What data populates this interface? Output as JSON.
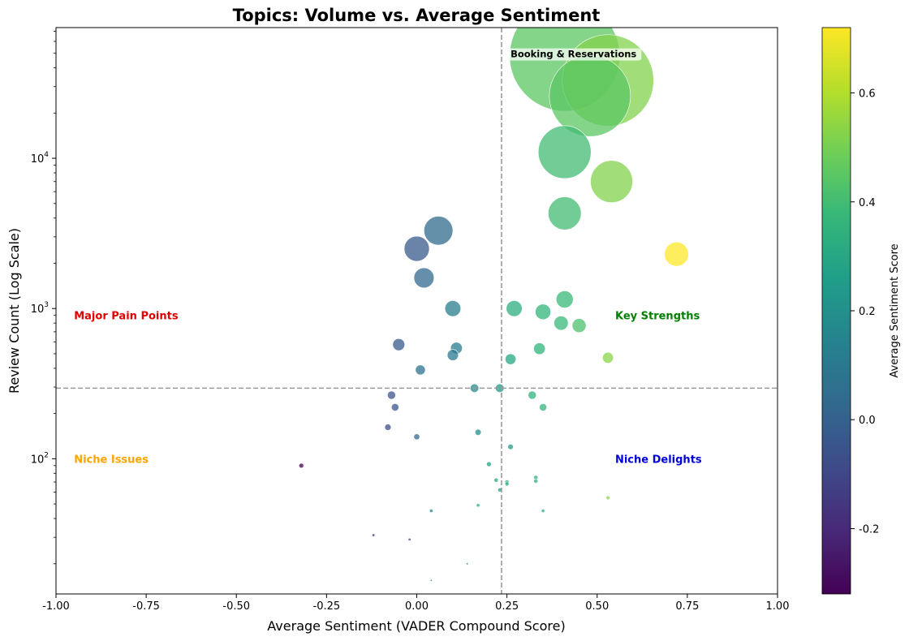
{
  "chart_data": {
    "type": "scatter",
    "title": "Topics: Volume vs. Average Sentiment",
    "xlabel": "Average Sentiment (VADER Compound Score)",
    "ylabel": "Review Count (Log Scale)",
    "xlim": [
      -1.0,
      1.0
    ],
    "ylim_log10": [
      1.1,
      4.87
    ],
    "y_scale": "log",
    "x_ticks": [
      "-1.00",
      "-0.75",
      "-0.50",
      "-0.25",
      "0.00",
      "0.25",
      "0.50",
      "0.75",
      "1.00"
    ],
    "x_tick_values": [
      -1.0,
      -0.75,
      -0.5,
      -0.25,
      0.0,
      0.25,
      0.5,
      0.75,
      1.0
    ],
    "y_ticks": [
      {
        "base": "10",
        "exp": "2",
        "value": 100
      },
      {
        "base": "10",
        "exp": "3",
        "value": 1000
      },
      {
        "base": "10",
        "exp": "4",
        "value": 10000
      }
    ],
    "grid": false,
    "reference_lines": {
      "x": 0.235,
      "y": 295
    },
    "colorbar": {
      "label": "Average Sentiment Score",
      "range": [
        -0.32,
        0.72
      ],
      "ticks": [
        "-0.2",
        "0.0",
        "0.2",
        "0.4",
        "0.6"
      ],
      "tick_values": [
        -0.2,
        0.0,
        0.2,
        0.4,
        0.6
      ]
    },
    "annotations": [
      {
        "text": "Major Pain Points",
        "x": -0.95,
        "y": 900,
        "color": "#e00000"
      },
      {
        "text": "Key Strengths",
        "x": 0.55,
        "y": 900,
        "color": "#008000"
      },
      {
        "text": "Niche Issues",
        "x": -0.95,
        "y": 100,
        "color": "#ffa500"
      },
      {
        "text": "Niche Delights",
        "x": 0.55,
        "y": 100,
        "color": "#0000dd"
      },
      {
        "text": "Booking & Reservations",
        "x": 0.26,
        "y": 50000,
        "color": "#000000"
      }
    ],
    "points": [
      {
        "x": 0.41,
        "y": 48000,
        "s": 0.45
      },
      {
        "x": 0.53,
        "y": 33000,
        "s": 0.52
      },
      {
        "x": 0.48,
        "y": 26000,
        "s": 0.45
      },
      {
        "x": 0.41,
        "y": 11000,
        "s": 0.4
      },
      {
        "x": 0.54,
        "y": 7000,
        "s": 0.52
      },
      {
        "x": 0.41,
        "y": 4300,
        "s": 0.4
      },
      {
        "x": 0.06,
        "y": 3300,
        "s": 0.04
      },
      {
        "x": 0.0,
        "y": 2500,
        "s": -0.03
      },
      {
        "x": 0.72,
        "y": 2300,
        "s": 0.72
      },
      {
        "x": 0.02,
        "y": 1600,
        "s": 0.03
      },
      {
        "x": 0.41,
        "y": 1150,
        "s": 0.38
      },
      {
        "x": 0.27,
        "y": 1000,
        "s": 0.33
      },
      {
        "x": 0.1,
        "y": 1000,
        "s": 0.12
      },
      {
        "x": 0.35,
        "y": 950,
        "s": 0.36
      },
      {
        "x": 0.4,
        "y": 800,
        "s": 0.38
      },
      {
        "x": 0.45,
        "y": 770,
        "s": 0.42
      },
      {
        "x": -0.05,
        "y": 575,
        "s": -0.03
      },
      {
        "x": 0.11,
        "y": 545,
        "s": 0.12
      },
      {
        "x": 0.34,
        "y": 540,
        "s": 0.36
      },
      {
        "x": 0.1,
        "y": 490,
        "s": 0.1
      },
      {
        "x": 0.53,
        "y": 470,
        "s": 0.53
      },
      {
        "x": 0.26,
        "y": 460,
        "s": 0.3
      },
      {
        "x": 0.01,
        "y": 390,
        "s": 0.06
      },
      {
        "x": 0.16,
        "y": 295,
        "s": 0.17
      },
      {
        "x": 0.23,
        "y": 295,
        "s": 0.24
      },
      {
        "x": -0.07,
        "y": 265,
        "s": -0.05
      },
      {
        "x": 0.32,
        "y": 265,
        "s": 0.35
      },
      {
        "x": -0.06,
        "y": 220,
        "s": -0.05
      },
      {
        "x": 0.35,
        "y": 220,
        "s": 0.37
      },
      {
        "x": -0.08,
        "y": 162,
        "s": -0.08
      },
      {
        "x": 0.17,
        "y": 150,
        "s": 0.2
      },
      {
        "x": 0.0,
        "y": 140,
        "s": 0.03
      },
      {
        "x": 0.26,
        "y": 120,
        "s": 0.26
      },
      {
        "x": 0.2,
        "y": 92,
        "s": 0.27
      },
      {
        "x": -0.32,
        "y": 90,
        "s": -0.32
      },
      {
        "x": 0.33,
        "y": 75,
        "s": 0.35
      },
      {
        "x": 0.22,
        "y": 72,
        "s": 0.3
      },
      {
        "x": 0.33,
        "y": 71,
        "s": 0.35
      },
      {
        "x": 0.25,
        "y": 70,
        "s": 0.3
      },
      {
        "x": 0.25,
        "y": 68,
        "s": 0.33
      },
      {
        "x": 0.23,
        "y": 62,
        "s": 0.27
      },
      {
        "x": 0.53,
        "y": 55,
        "s": 0.53
      },
      {
        "x": 0.17,
        "y": 49,
        "s": 0.35
      },
      {
        "x": 0.04,
        "y": 45,
        "s": 0.15
      },
      {
        "x": 0.35,
        "y": 45,
        "s": 0.3
      },
      {
        "x": -0.12,
        "y": 31,
        "s": -0.2
      },
      {
        "x": -0.02,
        "y": 29,
        "s": -0.1
      },
      {
        "x": 0.14,
        "y": 20,
        "s": 0.25
      },
      {
        "x": 0.04,
        "y": 15.5,
        "s": 0.15
      }
    ]
  }
}
